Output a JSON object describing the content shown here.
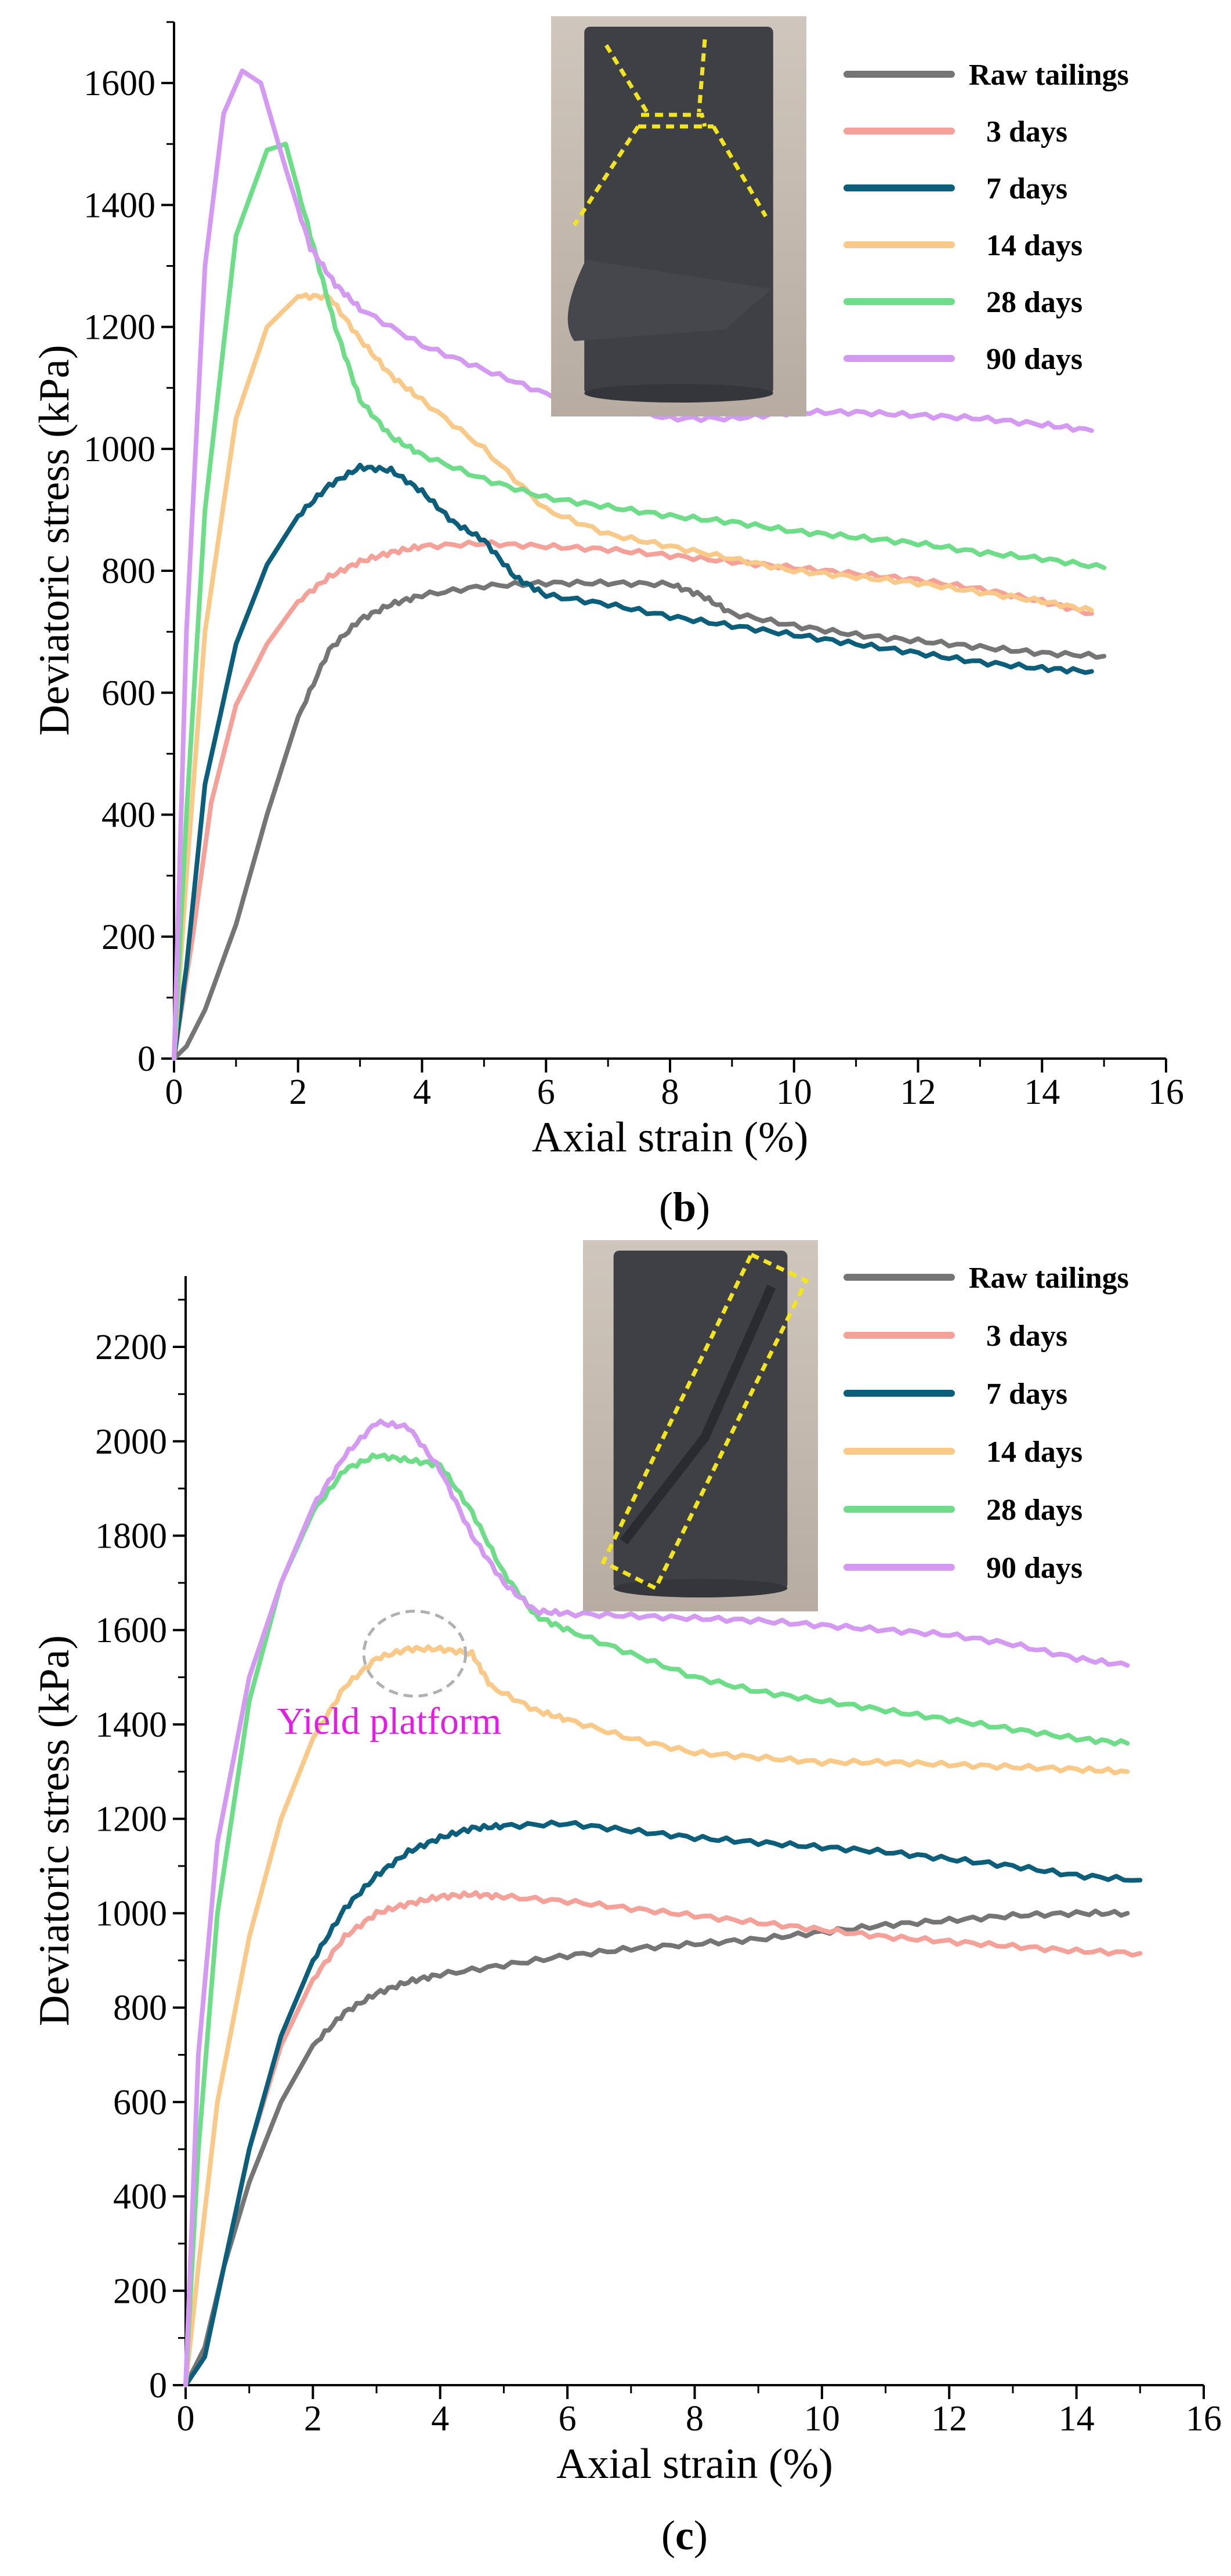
{
  "chart_data": [
    {
      "panel": "b",
      "panel_label": "b",
      "type": "line",
      "xlabel": "Axial strain (%)",
      "ylabel": "Deviatoric stress (kPa)",
      "xlim": [
        0,
        16
      ],
      "ylim": [
        0,
        1700
      ],
      "xticks": [
        0,
        2,
        4,
        6,
        8,
        10,
        12,
        14,
        16
      ],
      "yticks": [
        0,
        200,
        400,
        600,
        800,
        1000,
        1200,
        1400,
        1600
      ],
      "legend_position": "top-right",
      "inset_photo": "failed cylindrical specimen with conjugate shear planes (dashed yellow outline)",
      "series": [
        {
          "name": "Raw tailings",
          "color": "#757575",
          "x": [
            0,
            0.2,
            0.5,
            1,
            1.5,
            2,
            2.5,
            3,
            3.5,
            4,
            5,
            6,
            7,
            8,
            8.5,
            9,
            10,
            11,
            12,
            13,
            14,
            15
          ],
          "y": [
            0,
            20,
            80,
            220,
            400,
            560,
            670,
            720,
            745,
            760,
            775,
            780,
            780,
            778,
            760,
            730,
            710,
            695,
            685,
            675,
            665,
            660
          ]
        },
        {
          "name": "3 days",
          "color": "#f4a19a",
          "x": [
            0,
            0.3,
            0.6,
            1,
            1.5,
            2,
            2.5,
            3,
            3.5,
            4,
            5,
            6,
            7,
            8,
            9,
            10,
            11,
            12,
            13,
            14,
            14.8
          ],
          "y": [
            0,
            200,
            420,
            580,
            680,
            750,
            790,
            815,
            830,
            840,
            845,
            840,
            835,
            825,
            815,
            805,
            795,
            785,
            770,
            750,
            730
          ]
        },
        {
          "name": "7 days",
          "color": "#0d5e7a",
          "x": [
            0,
            0.2,
            0.5,
            1,
            1.5,
            2,
            2.5,
            3,
            3.5,
            4,
            4.5,
            5,
            5.5,
            6,
            7,
            8,
            9,
            10,
            11,
            12,
            13,
            14,
            14.8
          ],
          "y": [
            0,
            150,
            450,
            680,
            810,
            890,
            940,
            970,
            965,
            930,
            880,
            850,
            790,
            760,
            745,
            725,
            710,
            695,
            680,
            665,
            650,
            640,
            635
          ]
        },
        {
          "name": "14 days",
          "color": "#f9c98a",
          "x": [
            0,
            0.2,
            0.5,
            1,
            1.5,
            2,
            2.5,
            3,
            3.5,
            4,
            5,
            6,
            7,
            8,
            9,
            10,
            11,
            12,
            13,
            14,
            14.8
          ],
          "y": [
            0,
            300,
            700,
            1050,
            1200,
            1250,
            1250,
            1180,
            1120,
            1080,
            1000,
            900,
            860,
            840,
            820,
            800,
            790,
            780,
            765,
            750,
            735
          ]
        },
        {
          "name": "28 days",
          "color": "#6fdc8a",
          "x": [
            0,
            0.2,
            0.5,
            1,
            1.5,
            1.8,
            2.2,
            2.6,
            3,
            3.5,
            4,
            5,
            6,
            7,
            8,
            9,
            10,
            11,
            12,
            13,
            14,
            15
          ],
          "y": [
            0,
            400,
            900,
            1350,
            1490,
            1500,
            1350,
            1200,
            1080,
            1020,
            990,
            950,
            920,
            905,
            890,
            880,
            865,
            855,
            845,
            830,
            820,
            805
          ]
        },
        {
          "name": "90 days",
          "color": "#d49af2",
          "x": [
            0,
            0.2,
            0.5,
            0.8,
            1.1,
            1.4,
            1.8,
            2.2,
            2.6,
            3,
            4,
            5,
            6,
            7,
            8,
            9,
            10,
            11,
            12,
            13,
            14,
            14.8
          ],
          "y": [
            0,
            700,
            1300,
            1550,
            1620,
            1600,
            1460,
            1330,
            1270,
            1230,
            1170,
            1130,
            1090,
            1070,
            1050,
            1050,
            1060,
            1060,
            1055,
            1050,
            1040,
            1030
          ]
        }
      ]
    },
    {
      "panel": "c",
      "panel_label": "c",
      "type": "line",
      "xlabel": "Axial strain (%)",
      "ylabel": "Deviatoric stress (kPa)",
      "xlim": [
        0,
        16
      ],
      "ylim": [
        0,
        2350
      ],
      "xticks": [
        0,
        2,
        4,
        6,
        8,
        10,
        12,
        14,
        16
      ],
      "yticks": [
        0,
        200,
        400,
        600,
        800,
        1000,
        1200,
        1400,
        1600,
        1800,
        2000,
        2200
      ],
      "legend_position": "top-right",
      "inset_photo": "failed cylindrical specimen with single inclined shear band (dashed yellow rectangle)",
      "annotation": {
        "text": "Yield platform",
        "color": "#e020e0",
        "x": 3.2,
        "y": 1380
      },
      "annotation_ellipse": {
        "cx": 3.6,
        "cy": 1550,
        "rx": 0.8,
        "ry": 90
      },
      "series": [
        {
          "name": "Raw tailings",
          "color": "#757575",
          "x": [
            0,
            0.3,
            0.6,
            1,
            1.5,
            2,
            2.5,
            3,
            3.5,
            4,
            5,
            6,
            7,
            8,
            9,
            10,
            11,
            12,
            13,
            14,
            14.8
          ],
          "y": [
            0,
            80,
            250,
            430,
            600,
            720,
            790,
            830,
            855,
            870,
            890,
            910,
            925,
            935,
            945,
            960,
            975,
            985,
            995,
            1000,
            1000
          ]
        },
        {
          "name": "3 days",
          "color": "#f4a19a",
          "x": [
            0,
            0.3,
            0.6,
            1,
            1.5,
            2,
            2.5,
            3,
            3.5,
            4,
            4.5,
            5,
            6,
            7,
            8,
            9,
            10,
            11,
            12,
            13,
            14,
            15
          ],
          "y": [
            0,
            60,
            250,
            500,
            720,
            860,
            950,
            1000,
            1020,
            1035,
            1040,
            1035,
            1025,
            1010,
            995,
            980,
            965,
            950,
            940,
            930,
            920,
            915
          ]
        },
        {
          "name": "7 days",
          "color": "#0d5e7a",
          "x": [
            0,
            0.3,
            0.6,
            1,
            1.5,
            2,
            2.5,
            3,
            3.5,
            4,
            4.5,
            5,
            6,
            7,
            8,
            9,
            10,
            11,
            12,
            13,
            14,
            15
          ],
          "y": [
            0,
            60,
            250,
            500,
            740,
            900,
            1010,
            1080,
            1130,
            1160,
            1180,
            1185,
            1190,
            1175,
            1160,
            1150,
            1140,
            1130,
            1115,
            1100,
            1080,
            1070
          ]
        },
        {
          "name": "14 days",
          "color": "#f9c98a",
          "x": [
            0,
            0.2,
            0.5,
            1,
            1.5,
            2,
            2.5,
            3,
            3.5,
            4,
            4.5,
            4.8,
            5.5,
            6,
            7,
            8,
            9,
            10,
            11,
            12,
            13,
            14,
            14.8
          ],
          "y": [
            0,
            250,
            600,
            950,
            1200,
            1370,
            1480,
            1540,
            1560,
            1560,
            1550,
            1480,
            1430,
            1410,
            1370,
            1340,
            1330,
            1320,
            1320,
            1315,
            1310,
            1305,
            1300
          ]
        },
        {
          "name": "28 days",
          "color": "#6fdc8a",
          "x": [
            0,
            0.2,
            0.5,
            1,
            1.5,
            2,
            2.5,
            3,
            3.5,
            4,
            4.5,
            5,
            5.5,
            6,
            7,
            8,
            9,
            10,
            11,
            12,
            13,
            14,
            14.8
          ],
          "y": [
            0,
            500,
            1000,
            1450,
            1700,
            1850,
            1940,
            1970,
            1960,
            1950,
            1850,
            1720,
            1630,
            1600,
            1550,
            1500,
            1470,
            1450,
            1430,
            1410,
            1390,
            1370,
            1360
          ]
        },
        {
          "name": "90 days",
          "color": "#d49af2",
          "x": [
            0,
            0.2,
            0.5,
            1,
            1.5,
            2,
            2.5,
            3,
            3.5,
            4,
            4.5,
            5,
            5.5,
            6,
            7,
            8,
            9,
            10,
            11,
            12,
            13,
            14,
            14.8
          ],
          "y": [
            0,
            700,
            1150,
            1500,
            1700,
            1860,
            1970,
            2040,
            2030,
            1940,
            1800,
            1700,
            1640,
            1635,
            1630,
            1625,
            1620,
            1610,
            1600,
            1590,
            1570,
            1540,
            1525
          ]
        }
      ]
    }
  ]
}
